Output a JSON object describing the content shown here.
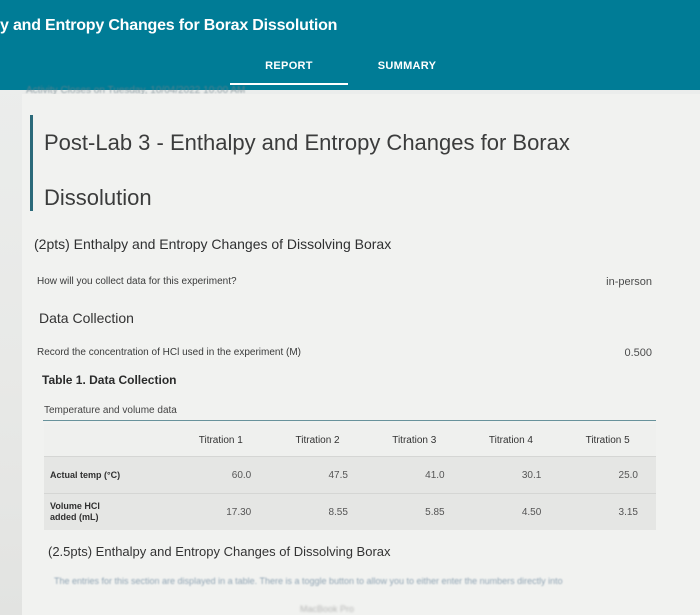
{
  "header": {
    "title": "y and Entropy Changes for Borax Dissolution",
    "tabs": [
      {
        "label": "REPORT",
        "active": true
      },
      {
        "label": "SUMMARY",
        "active": false
      }
    ],
    "colors": {
      "bar": "#007c96",
      "tab_text": "#ffffff"
    }
  },
  "breadcrumb_blurred": "Activity Closes on Tuesday, 10/04/2022 10:00 AM",
  "main": {
    "title": "Post-Lab 3 - Enthalpy and Entropy Changes for Borax",
    "title_line2": "Dissolution",
    "section1": "(2pts) Enthalpy and Entropy Changes of Dissolving Borax",
    "q1": {
      "question": "How will you collect data for this experiment?",
      "answer": "in-person"
    },
    "data_collection": "Data Collection",
    "q2": {
      "question": "Record the concentration of HCl used in the experiment (M)",
      "answer": "0.500"
    },
    "table_caption": "Table 1. Data Collection",
    "table_subcaption": "Temperature and volume data",
    "table": {
      "headers": [
        "",
        "Titration 1",
        "Titration 2",
        "Titration 3",
        "Titration 4",
        "Titration 5"
      ],
      "rows": [
        {
          "label": "Actual temp (°C)",
          "values": [
            "60.0",
            "47.5",
            "41.0",
            "30.1",
            "25.0"
          ]
        },
        {
          "label": "Volume HCl\nadded (mL)",
          "values": [
            "17.30",
            "8.55",
            "5.85",
            "4.50",
            "3.15"
          ]
        }
      ]
    },
    "section2": "(2.5pts) Enthalpy and Entropy Changes of Dissolving Borax",
    "section2_blurred": "The entries for this section are displayed in a table. There is a toggle button to allow you to either enter the numbers directly into",
    "bottom_blurred": "MacBook Pro"
  }
}
